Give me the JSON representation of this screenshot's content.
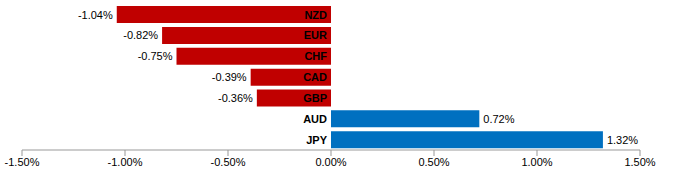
{
  "chart_data": {
    "type": "bar",
    "orientation": "horizontal",
    "categories": [
      "NZD",
      "EUR",
      "CHF",
      "CAD",
      "GBP",
      "AUD",
      "JPY"
    ],
    "values": [
      -1.04,
      -0.82,
      -0.75,
      -0.39,
      -0.36,
      0.72,
      1.32
    ],
    "value_labels": [
      "-1.04%",
      "-0.82%",
      "-0.75%",
      "-0.39%",
      "-0.36%",
      "0.72%",
      "1.32%"
    ],
    "colors": [
      "#c00000",
      "#c00000",
      "#c00000",
      "#c00000",
      "#c00000",
      "#0070c0",
      "#0070c0"
    ],
    "xlim": [
      -1.5,
      1.5
    ],
    "xticks": [
      {
        "value": -1.5,
        "label": "-1.50%"
      },
      {
        "value": -1,
        "label": "-1.00%"
      },
      {
        "value": -0.5,
        "label": "-0.50%"
      },
      {
        "value": 0,
        "label": "0.00%"
      },
      {
        "value": 0.5,
        "label": "0.50%"
      },
      {
        "value": 1,
        "label": "1.00%"
      },
      {
        "value": 1.5,
        "label": "1.50%"
      }
    ],
    "data_labels": true,
    "grid": false
  }
}
